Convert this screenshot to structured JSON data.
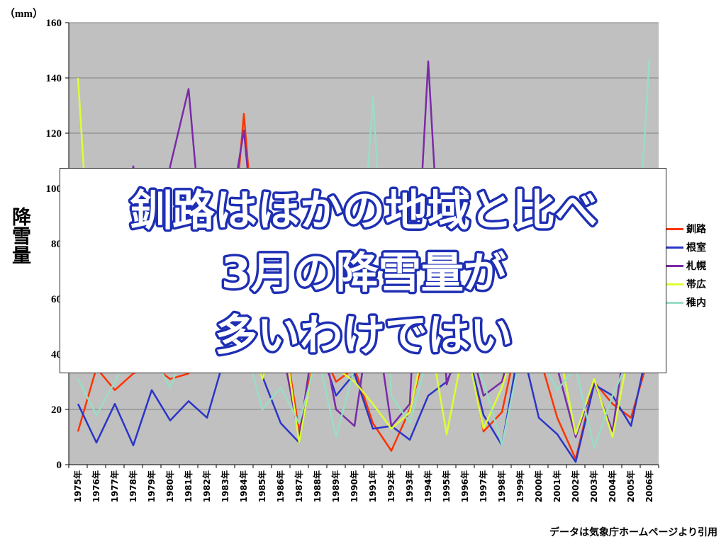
{
  "chart_data": {
    "type": "line",
    "unit_label": "（mm）",
    "ylabel": "降雪量",
    "ylim": [
      0,
      160
    ],
    "yticks": [
      0,
      20,
      40,
      60,
      80,
      100,
      120,
      140,
      160
    ],
    "grid": true,
    "legend_position": "right",
    "plot_background": "#c0c0c0",
    "categories": [
      "1975年",
      "1976年",
      "1977年",
      "1978年",
      "1979年",
      "1980年",
      "1981年",
      "1982年",
      "1983年",
      "1984年",
      "1985年",
      "1986年",
      "1987年",
      "1988年",
      "1989年",
      "1990年",
      "1991年",
      "1992年",
      "1993年",
      "1994年",
      "1995年",
      "1996年",
      "1997年",
      "1998年",
      "1999年",
      "2000年",
      "2001年",
      "2002年",
      "2003年",
      "2004年",
      "2005年",
      "2006年"
    ],
    "series": [
      {
        "name": "釧路",
        "color": "#ff3300",
        "values": [
          12,
          35,
          27,
          33,
          36,
          31,
          33,
          50,
          50,
          127,
          45,
          55,
          12,
          45,
          30,
          35,
          15,
          5,
          20,
          45,
          40,
          50,
          12,
          19,
          50,
          40,
          17,
          2,
          30,
          22,
          17,
          40
        ]
      },
      {
        "name": "根室",
        "color": "#2a35c8",
        "values": [
          22,
          8,
          22,
          7,
          27,
          16,
          23,
          17,
          40,
          50,
          32,
          15,
          8,
          45,
          25,
          33,
          13,
          14,
          9,
          25,
          30,
          45,
          18,
          7,
          45,
          17,
          11,
          1,
          29,
          25,
          14,
          45
        ]
      },
      {
        "name": "札幌",
        "color": "#7a2aa8",
        "values": [
          60,
          55,
          50,
          108,
          55,
          108,
          136,
          60,
          80,
          121,
          50,
          45,
          10,
          55,
          20,
          14,
          60,
          14,
          22,
          146,
          29,
          50,
          25,
          30,
          55,
          45,
          35,
          10,
          30,
          12,
          60,
          80
        ]
      },
      {
        "name": "帯広",
        "color": "#ddff33",
        "values": [
          140,
          35,
          45,
          40,
          50,
          45,
          60,
          50,
          60,
          60,
          31,
          55,
          8,
          45,
          35,
          30,
          22,
          13,
          19,
          50,
          11,
          45,
          13,
          28,
          50,
          45,
          45,
          11,
          31,
          10,
          45,
          60
        ]
      },
      {
        "name": "稚内",
        "color": "#99ddc4",
        "values": [
          31,
          18,
          30,
          45,
          40,
          28,
          45,
          40,
          50,
          45,
          20,
          28,
          15,
          40,
          10,
          35,
          133,
          25,
          15,
          40,
          35,
          45,
          30,
          7,
          40,
          40,
          27,
          35,
          6,
          25,
          40,
          147
        ]
      }
    ]
  },
  "overlay": {
    "line1": "釧路はほかの地域と比べ",
    "line2": "3月の降雪量が",
    "line3": "多いわけではい"
  },
  "source_note": "データは気象庁ホームページより引用"
}
